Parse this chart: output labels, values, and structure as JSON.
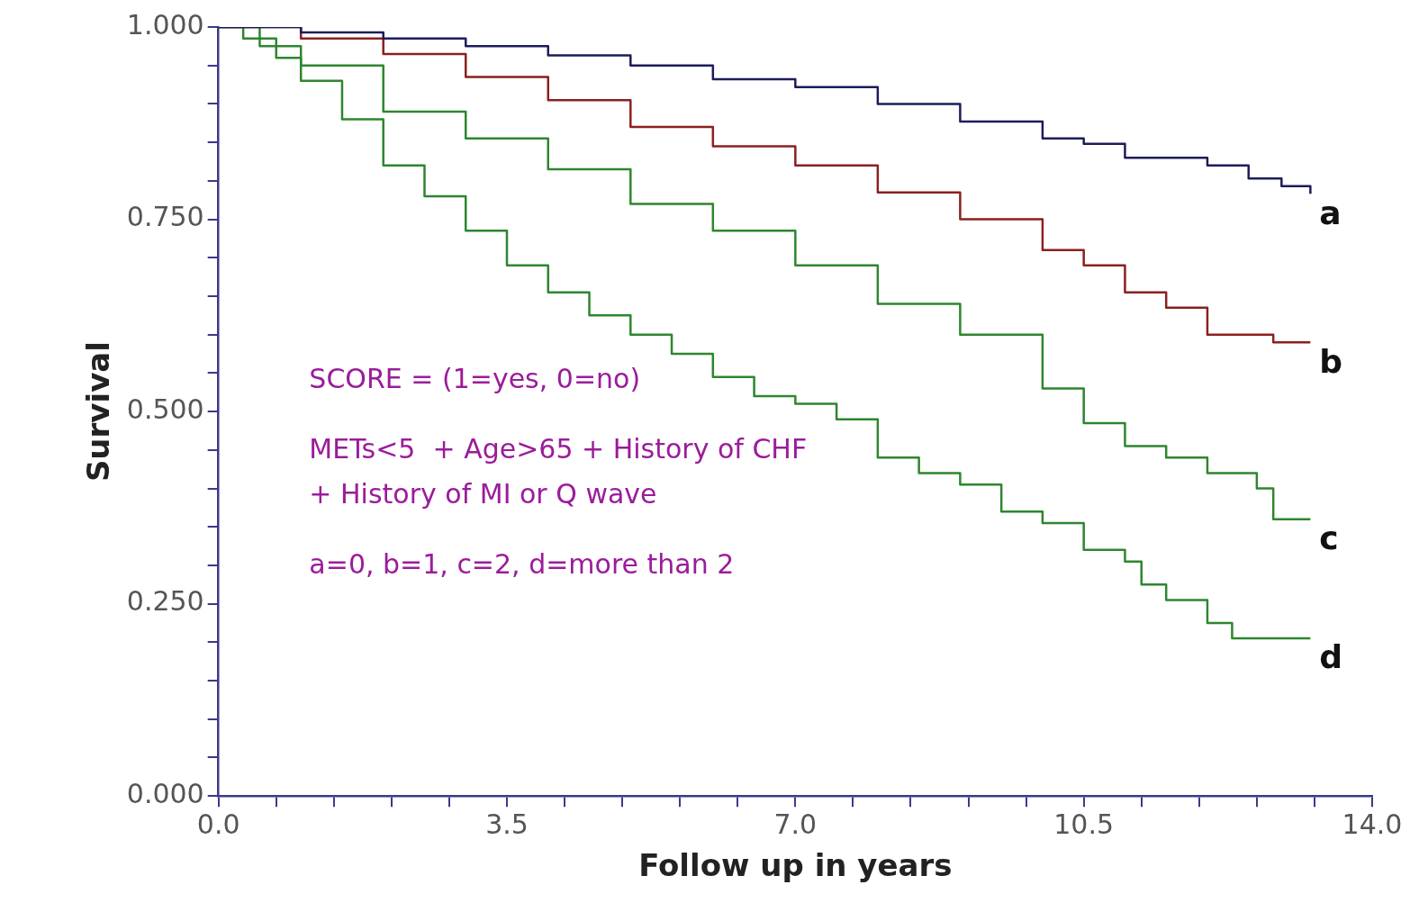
{
  "chart_data": {
    "type": "step",
    "xlabel": "Follow up in years",
    "ylabel": "Survival",
    "xlim": [
      0,
      14
    ],
    "ylim": [
      0,
      1
    ],
    "xticks": [
      {
        "value": 0,
        "label": "0.0"
      },
      {
        "value": 0.7,
        "label": null
      },
      {
        "value": 1.4,
        "label": null
      },
      {
        "value": 2.1,
        "label": null
      },
      {
        "value": 2.8,
        "label": null
      },
      {
        "value": 3.5,
        "label": "3.5"
      },
      {
        "value": 4.2,
        "label": null
      },
      {
        "value": 4.9,
        "label": null
      },
      {
        "value": 5.6,
        "label": null
      },
      {
        "value": 6.3,
        "label": null
      },
      {
        "value": 7,
        "label": "7.0"
      },
      {
        "value": 7.7,
        "label": null
      },
      {
        "value": 8.4,
        "label": null
      },
      {
        "value": 9.1,
        "label": null
      },
      {
        "value": 9.8,
        "label": null
      },
      {
        "value": 10.5,
        "label": "10.5"
      },
      {
        "value": 11.2,
        "label": null
      },
      {
        "value": 11.9,
        "label": null
      },
      {
        "value": 12.6,
        "label": null
      },
      {
        "value": 13.3,
        "label": null
      },
      {
        "value": 14,
        "label": "14.0"
      }
    ],
    "yticks": [
      {
        "value": 0,
        "label": "0.000"
      },
      {
        "value": 0.05,
        "label": null
      },
      {
        "value": 0.1,
        "label": null
      },
      {
        "value": 0.15,
        "label": null
      },
      {
        "value": 0.2,
        "label": null
      },
      {
        "value": 0.25,
        "label": "0.250"
      },
      {
        "value": 0.3,
        "label": null
      },
      {
        "value": 0.35,
        "label": null
      },
      {
        "value": 0.4,
        "label": null
      },
      {
        "value": 0.45,
        "label": null
      },
      {
        "value": 0.5,
        "label": "0.500"
      },
      {
        "value": 0.55,
        "label": null
      },
      {
        "value": 0.6,
        "label": null
      },
      {
        "value": 0.65,
        "label": null
      },
      {
        "value": 0.7,
        "label": null
      },
      {
        "value": 0.75,
        "label": "0.750"
      },
      {
        "value": 0.8,
        "label": null
      },
      {
        "value": 0.85,
        "label": null
      },
      {
        "value": 0.9,
        "label": null
      },
      {
        "value": 0.95,
        "label": null
      },
      {
        "value": 1,
        "label": "1.000"
      }
    ],
    "grid": false,
    "legend": false,
    "marker": "none",
    "line_style": "solid",
    "series": [
      {
        "name": "a",
        "color": "#1c1c5c",
        "x": [
          0,
          1,
          2,
          3,
          4,
          5,
          6,
          7,
          8,
          9,
          10,
          10.5,
          11,
          12,
          12.5,
          12.9,
          13.25
        ],
        "values": [
          1,
          0.993,
          0.985,
          0.975,
          0.963,
          0.95,
          0.932,
          0.922,
          0.9,
          0.877,
          0.855,
          0.848,
          0.83,
          0.82,
          0.803,
          0.793,
          0.783
        ]
      },
      {
        "name": "b",
        "color": "#8b2020",
        "x": [
          0,
          1,
          2,
          3,
          4,
          5,
          6,
          7,
          8,
          9,
          10,
          10.5,
          11,
          11.5,
          12,
          12.8,
          13.25
        ],
        "values": [
          1,
          0.985,
          0.965,
          0.935,
          0.905,
          0.87,
          0.845,
          0.82,
          0.785,
          0.75,
          0.71,
          0.69,
          0.655,
          0.635,
          0.6,
          0.59,
          0.59
        ]
      },
      {
        "name": "c",
        "color": "#2e862e",
        "x": [
          0,
          0.5,
          1,
          2,
          3,
          4,
          5,
          6,
          7,
          8,
          9,
          10,
          10.5,
          11,
          11.5,
          12,
          12.6,
          12.8,
          13.25
        ],
        "values": [
          1,
          0.975,
          0.95,
          0.89,
          0.855,
          0.815,
          0.77,
          0.735,
          0.69,
          0.64,
          0.6,
          0.53,
          0.485,
          0.455,
          0.44,
          0.42,
          0.4,
          0.36,
          0.36
        ]
      },
      {
        "name": "d",
        "color": "#2e862e",
        "x": [
          0,
          0.3,
          0.7,
          1,
          1.5,
          2,
          2.5,
          3,
          3.5,
          4,
          4.5,
          5,
          5.5,
          6,
          6.5,
          7,
          7.5,
          8,
          8.5,
          9,
          9.5,
          10,
          10.5,
          11,
          11.2,
          11.5,
          12,
          12.3,
          13.25
        ],
        "values": [
          1,
          0.985,
          0.96,
          0.93,
          0.88,
          0.82,
          0.78,
          0.735,
          0.69,
          0.655,
          0.625,
          0.6,
          0.575,
          0.545,
          0.52,
          0.51,
          0.49,
          0.44,
          0.42,
          0.405,
          0.37,
          0.355,
          0.32,
          0.305,
          0.275,
          0.255,
          0.225,
          0.205,
          0.205
        ]
      }
    ],
    "annotations": [
      "SCORE = (1=yes, 0=no)",
      "METs<5  + Age>65 + History of CHF",
      "+ History of MI or Q wave",
      "a=0, b=1, c=2, d=more than 2"
    ]
  }
}
